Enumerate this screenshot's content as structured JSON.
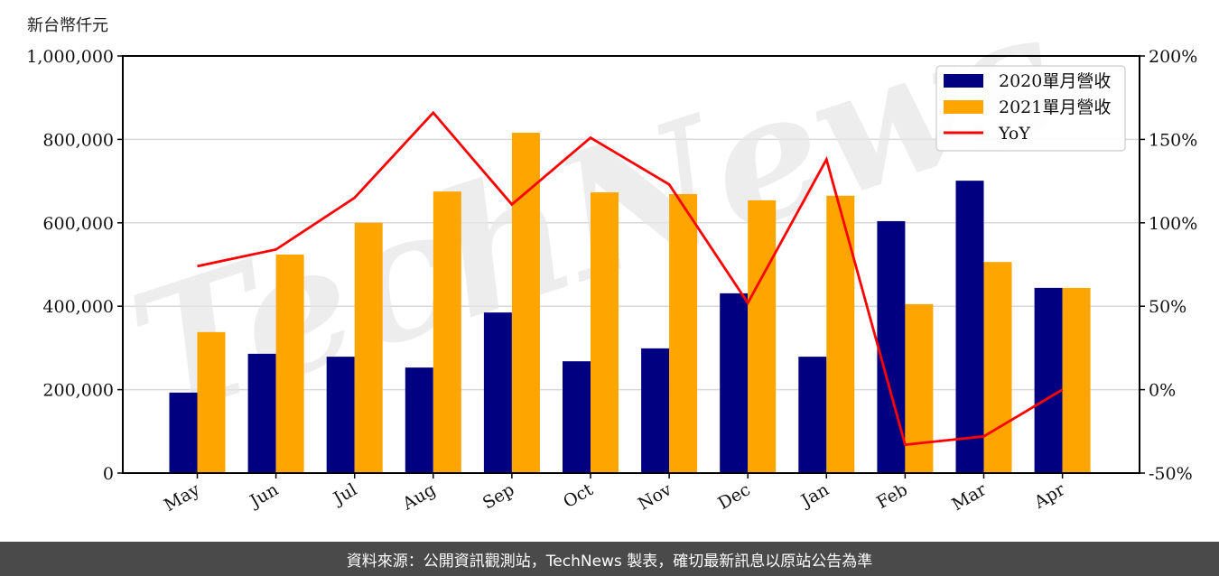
{
  "chart_data": {
    "type": "bar",
    "title": "",
    "ylabel": "新台幣仟元",
    "xlabel": "",
    "categories": [
      "May",
      "Jun",
      "Jul",
      "Aug",
      "Sep",
      "Oct",
      "Nov",
      "Dec",
      "Jan",
      "Feb",
      "Mar",
      "Apr"
    ],
    "series": [
      {
        "name": "2020單月營收",
        "type": "bar",
        "axis": "left",
        "color": "#000080",
        "values": [
          193000,
          286000,
          279000,
          253000,
          385000,
          268000,
          299000,
          431000,
          279000,
          604000,
          701000,
          444000
        ]
      },
      {
        "name": "2021單月營收",
        "type": "bar",
        "axis": "left",
        "color": "#FFA500",
        "values": [
          338000,
          524000,
          600000,
          675000,
          816000,
          673000,
          669000,
          654000,
          665000,
          405000,
          506000,
          444000
        ]
      },
      {
        "name": "YoY",
        "type": "line",
        "axis": "right",
        "color": "#FF0000",
        "values": [
          74,
          84,
          115,
          166,
          111,
          151,
          123,
          52,
          138,
          -33,
          -28,
          0
        ]
      }
    ],
    "ylim": [
      0,
      1000000
    ],
    "y2lim": [
      -50,
      200
    ],
    "y_ticks": [
      "0",
      "200,000",
      "400,000",
      "600,000",
      "800,000",
      "1,000,000"
    ],
    "y_tick_values": [
      0,
      200000,
      400000,
      600000,
      800000,
      1000000
    ],
    "y2_ticks": [
      "-50%",
      "0%",
      "50%",
      "100%",
      "150%",
      "200%"
    ],
    "y2_tick_values": [
      -50,
      0,
      50,
      100,
      150,
      200
    ],
    "grid": true,
    "legend_position": "upper right",
    "watermark": "TechNews"
  },
  "header": {
    "unit_label": "新台幣仟元"
  },
  "legend": {
    "items": [
      {
        "label": "2020單月營收",
        "color": "#000080",
        "kind": "bar"
      },
      {
        "label": "2021單月營收",
        "color": "#FFA500",
        "kind": "bar"
      },
      {
        "label": "YoY",
        "color": "#FF0000",
        "kind": "line"
      }
    ]
  },
  "footer": {
    "source_text": "資料來源：公開資訊觀測站，TechNews 製表，確切最新訊息以原站公告為準"
  }
}
